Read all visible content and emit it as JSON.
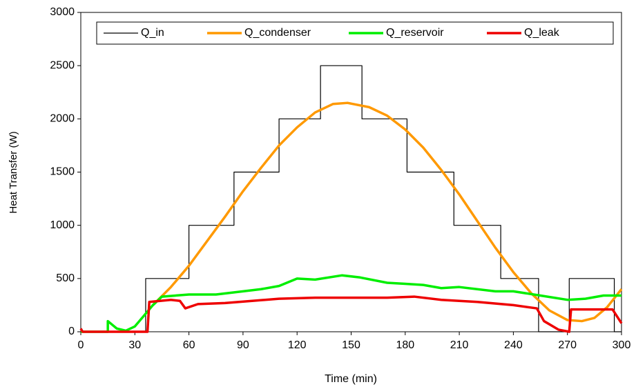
{
  "chart_data": {
    "type": "line",
    "xlabel": "Time (min)",
    "ylabel": "Heat Transfer (W)",
    "xlim": [
      0,
      300
    ],
    "xticks": [
      0,
      30,
      60,
      90,
      120,
      150,
      180,
      210,
      240,
      270,
      300
    ],
    "ylim": [
      0,
      3000
    ],
    "yticks": [
      0,
      500,
      1000,
      1500,
      2000,
      2500,
      3000
    ],
    "grid": false,
    "legend": "top",
    "series": [
      {
        "name": "Q_in",
        "color": "#000000",
        "x": [
          0,
          36,
          36,
          60,
          60,
          85,
          85,
          110,
          110,
          133,
          133,
          156,
          156,
          181,
          181,
          207,
          207,
          233,
          233,
          254,
          254,
          271,
          271,
          296,
          296,
          300
        ],
        "values": [
          0,
          0,
          500,
          500,
          1000,
          1000,
          1500,
          1500,
          2000,
          2000,
          2500,
          2500,
          2000,
          2000,
          1500,
          1500,
          1000,
          1000,
          500,
          500,
          0,
          0,
          500,
          500,
          0,
          0
        ]
      },
      {
        "name": "Q_condenser",
        "color": "#ff9900",
        "x": [
          40,
          50,
          60,
          70,
          80,
          90,
          100,
          110,
          120,
          130,
          140,
          148,
          160,
          170,
          180,
          190,
          200,
          210,
          220,
          230,
          240,
          250,
          260,
          270,
          278,
          285,
          292,
          300
        ],
        "values": [
          250,
          420,
          620,
          850,
          1080,
          1320,
          1540,
          1750,
          1920,
          2060,
          2140,
          2150,
          2110,
          2030,
          1900,
          1730,
          1520,
          1290,
          1040,
          790,
          560,
          360,
          200,
          110,
          100,
          130,
          230,
          400
        ]
      },
      {
        "name": "Q_reservoir",
        "color": "#00ee00",
        "x": [
          0,
          15,
          15,
          20,
          25,
          30,
          35,
          40,
          45,
          60,
          75,
          90,
          100,
          110,
          120,
          130,
          145,
          155,
          170,
          180,
          190,
          200,
          210,
          230,
          240,
          255,
          270,
          280,
          290,
          300
        ],
        "values": [
          0,
          0,
          100,
          30,
          10,
          50,
          150,
          250,
          330,
          350,
          350,
          380,
          400,
          430,
          500,
          490,
          530,
          510,
          460,
          450,
          440,
          410,
          420,
          380,
          380,
          340,
          300,
          310,
          340,
          340
        ]
      },
      {
        "name": "Q_leak",
        "color": "#ee0000",
        "x": [
          0,
          1,
          37,
          38,
          50,
          55,
          58,
          65,
          80,
          95,
          110,
          130,
          150,
          170,
          185,
          200,
          220,
          240,
          253,
          257,
          265,
          271,
          272,
          295,
          300
        ],
        "values": [
          30,
          0,
          0,
          280,
          300,
          290,
          220,
          260,
          270,
          290,
          310,
          320,
          320,
          320,
          330,
          300,
          280,
          250,
          220,
          100,
          20,
          0,
          210,
          210,
          80
        ]
      }
    ]
  }
}
